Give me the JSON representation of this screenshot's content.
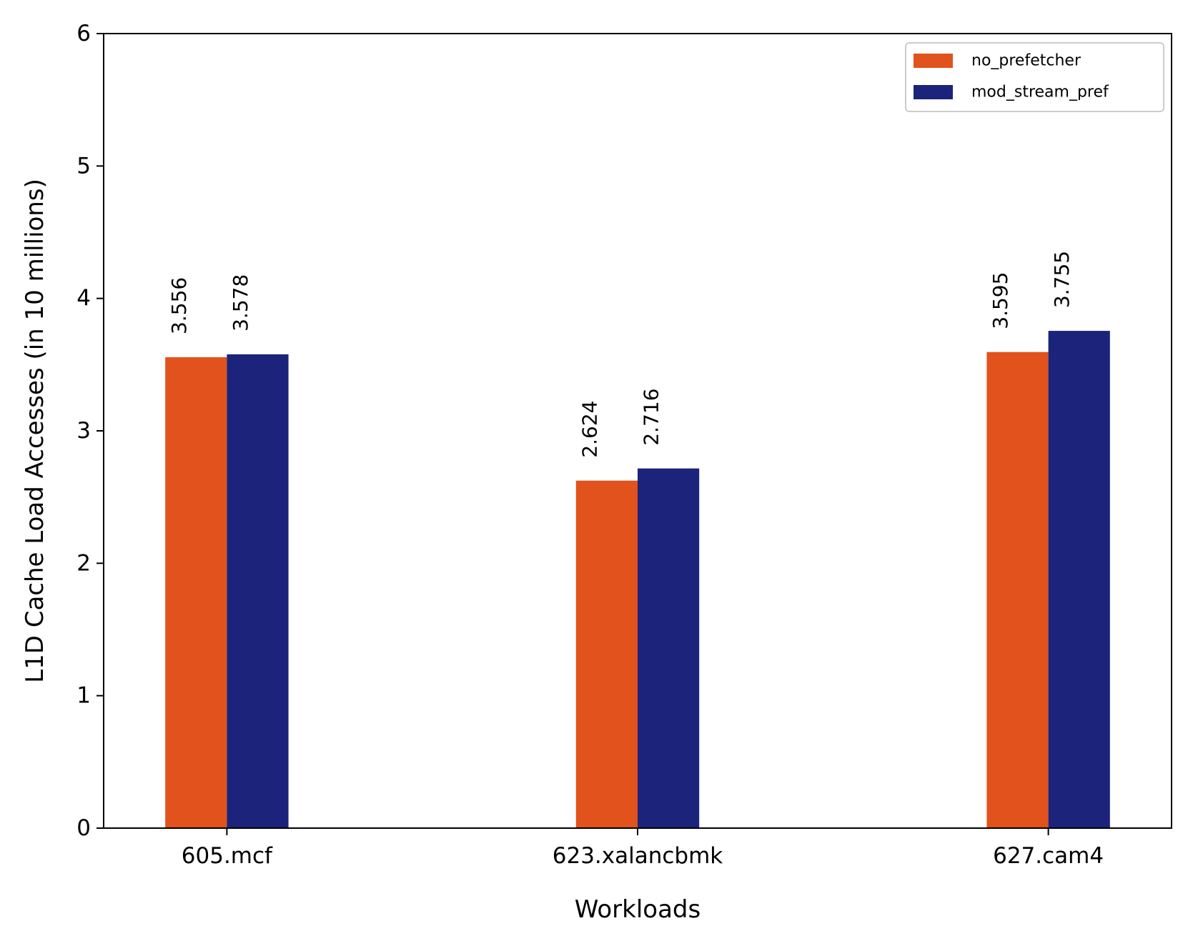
{
  "chart_data": {
    "type": "bar",
    "title": "",
    "xlabel": "Workloads",
    "ylabel": "L1D Cache Load Accesses (in 10 millions)",
    "categories": [
      "605.mcf",
      "623.xalancbmk",
      "627.cam4"
    ],
    "series": [
      {
        "name": "no_prefetcher",
        "color": "#E1521D",
        "values": [
          3.556,
          2.624,
          3.595
        ],
        "labels": [
          "3.556",
          "2.624",
          "3.595"
        ]
      },
      {
        "name": "mod_stream_pref",
        "color": "#1B237B",
        "values": [
          3.578,
          2.716,
          3.755
        ],
        "labels": [
          "3.578",
          "2.716",
          "3.755"
        ]
      }
    ],
    "ylim": [
      0,
      6
    ],
    "yticks": [
      0,
      1,
      2,
      3,
      4,
      5,
      6
    ],
    "ytick_labels": [
      "0",
      "1",
      "2",
      "3",
      "4",
      "5",
      "6"
    ],
    "grid": false,
    "legend_position": "top-right"
  }
}
